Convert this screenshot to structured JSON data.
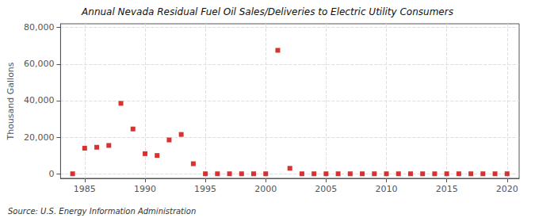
{
  "chart_data": {
    "type": "scatter",
    "title": "Annual Nevada Residual Fuel Oil Sales/Deliveries to Electric Utility Consumers",
    "ylabel": "Thousand Gallons",
    "annotations": [
      "Source: U.S. Energy Information Administration"
    ],
    "x": [
      1984,
      1985,
      1986,
      1987,
      1988,
      1989,
      1990,
      1991,
      1992,
      1993,
      1994,
      1995,
      1996,
      1997,
      1998,
      1999,
      2000,
      2001,
      2002,
      2003,
      2004,
      2005,
      2006,
      2007,
      2008,
      2009,
      2010,
      2011,
      2012,
      2013,
      2014,
      2015,
      2016,
      2017,
      2018,
      2019,
      2020
    ],
    "values": [
      0,
      14000,
      14500,
      15500,
      38500,
      24500,
      11000,
      10000,
      18500,
      21500,
      5500,
      0,
      0,
      0,
      0,
      0,
      0,
      67500,
      3000,
      0,
      0,
      0,
      0,
      0,
      0,
      0,
      0,
      0,
      0,
      0,
      0,
      0,
      0,
      0,
      0,
      0,
      0
    ],
    "color": "#cc0000",
    "marker": "square",
    "xlim": [
      1983,
      2021
    ],
    "xticks": [
      1985,
      1990,
      1995,
      2000,
      2005,
      2010,
      2015,
      2020
    ],
    "ylim": [
      -2500,
      82000
    ],
    "yticks": [
      0,
      {
        "value": 20000,
        "label": "20,000"
      },
      {
        "value": 40000,
        "label": "40,000"
      },
      {
        "value": 60000,
        "label": "60,000"
      },
      {
        "value": 80000,
        "label": "80,000"
      }
    ],
    "grid": true
  }
}
